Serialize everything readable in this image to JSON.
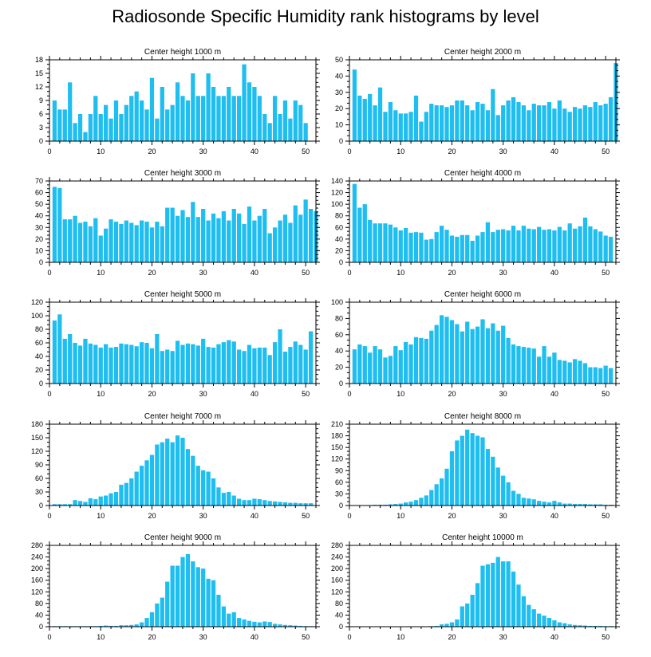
{
  "title": "Radiosonde Specific Humidity rank histograms by level",
  "bar_color": "#1ebef0",
  "chart_data": [
    {
      "type": "bar",
      "title": "Center height 1000 m",
      "xlabel": "",
      "ylabel": "",
      "xlim": [
        0,
        52
      ],
      "ylim": [
        0,
        18
      ],
      "xticks": [
        0,
        10,
        20,
        30,
        40,
        50
      ],
      "yticks": [
        0,
        3,
        6,
        9,
        12,
        15,
        18
      ],
      "values": [
        9,
        7,
        7,
        13,
        4,
        6,
        2,
        6,
        10,
        6,
        8,
        5,
        9,
        6,
        8,
        10,
        11,
        9,
        7,
        14,
        5,
        12,
        7,
        8,
        13,
        10,
        9,
        15,
        10,
        10,
        15,
        12,
        10,
        10,
        12,
        10,
        10,
        17,
        13,
        12,
        10,
        6,
        4,
        10,
        6,
        9,
        5,
        9,
        8,
        4
      ]
    },
    {
      "type": "bar",
      "title": "Center height 2000 m",
      "xlabel": "",
      "ylabel": "",
      "xlim": [
        0,
        52
      ],
      "ylim": [
        0,
        50
      ],
      "xticks": [
        0,
        10,
        20,
        30,
        40,
        50
      ],
      "yticks": [
        0,
        10,
        20,
        30,
        40,
        50
      ],
      "values": [
        44,
        28,
        26,
        29,
        22,
        33,
        18,
        24,
        19,
        17,
        17,
        18,
        28,
        12,
        18,
        23,
        22,
        22,
        21,
        22,
        25,
        25,
        22,
        19,
        24,
        23,
        19,
        32,
        16,
        22,
        25,
        27,
        24,
        22,
        19,
        23,
        22,
        22,
        24,
        20,
        25,
        20,
        18,
        21,
        20,
        22,
        21,
        24,
        22,
        23,
        27,
        48
      ]
    },
    {
      "type": "bar",
      "title": "Center height 3000 m",
      "xlabel": "",
      "ylabel": "",
      "xlim": [
        0,
        52
      ],
      "ylim": [
        0,
        70
      ],
      "xticks": [
        0,
        10,
        20,
        30,
        40,
        50
      ],
      "yticks": [
        0,
        10,
        20,
        30,
        40,
        50,
        60,
        70
      ],
      "values": [
        65,
        64,
        37,
        37,
        40,
        34,
        35,
        31,
        38,
        23,
        29,
        37,
        35,
        33,
        36,
        34,
        32,
        36,
        35,
        30,
        35,
        31,
        47,
        47,
        40,
        45,
        39,
        52,
        39,
        46,
        36,
        42,
        38,
        44,
        36,
        46,
        42,
        33,
        48,
        36,
        40,
        46,
        25,
        30,
        36,
        41,
        34,
        49,
        41,
        54,
        46,
        44
      ]
    },
    {
      "type": "bar",
      "title": "Center height 4000 m",
      "xlabel": "",
      "ylabel": "",
      "xlim": [
        0,
        52
      ],
      "ylim": [
        0,
        140
      ],
      "xticks": [
        0,
        10,
        20,
        30,
        40,
        50
      ],
      "yticks": [
        0,
        20,
        40,
        60,
        80,
        100,
        120,
        140
      ],
      "values": [
        135,
        94,
        100,
        73,
        67,
        67,
        67,
        65,
        60,
        55,
        59,
        51,
        52,
        51,
        39,
        40,
        52,
        63,
        56,
        46,
        44,
        47,
        47,
        37,
        46,
        52,
        69,
        52,
        56,
        57,
        55,
        63,
        55,
        63,
        58,
        57,
        61,
        56,
        57,
        55,
        61,
        55,
        67,
        58,
        62,
        77,
        62,
        57,
        53,
        46,
        44
      ]
    },
    {
      "type": "bar",
      "title": "Center height 5000 m",
      "xlabel": "",
      "ylabel": "",
      "xlim": [
        0,
        52
      ],
      "ylim": [
        0,
        120
      ],
      "xticks": [
        0,
        10,
        20,
        30,
        40,
        50
      ],
      "yticks": [
        0,
        20,
        40,
        60,
        80,
        100,
        120
      ],
      "values": [
        93,
        102,
        66,
        73,
        60,
        56,
        66,
        59,
        57,
        53,
        58,
        53,
        54,
        59,
        58,
        57,
        55,
        61,
        60,
        52,
        73,
        48,
        50,
        48,
        63,
        57,
        59,
        58,
        56,
        66,
        54,
        53,
        58,
        61,
        64,
        62,
        50,
        48,
        57,
        52,
        53,
        53,
        42,
        61,
        80,
        47,
        54,
        62,
        57,
        50,
        77
      ]
    },
    {
      "type": "bar",
      "title": "Center height 6000 m",
      "xlabel": "",
      "ylabel": "",
      "xlim": [
        0,
        52
      ],
      "ylim": [
        0,
        100
      ],
      "xticks": [
        0,
        10,
        20,
        30,
        40,
        50
      ],
      "yticks": [
        0,
        20,
        40,
        60,
        80,
        100
      ],
      "values": [
        42,
        48,
        46,
        38,
        46,
        42,
        32,
        34,
        46,
        41,
        51,
        48,
        57,
        56,
        55,
        65,
        72,
        84,
        82,
        78,
        73,
        64,
        76,
        67,
        70,
        79,
        68,
        74,
        65,
        71,
        56,
        48,
        46,
        45,
        44,
        43,
        33,
        46,
        33,
        38,
        29,
        28,
        26,
        30,
        28,
        25,
        20,
        20,
        19,
        22,
        19
      ]
    },
    {
      "type": "bar",
      "title": "Center height 7000 m",
      "xlabel": "",
      "ylabel": "",
      "xlim": [
        0,
        52
      ],
      "ylim": [
        0,
        180
      ],
      "xticks": [
        0,
        10,
        20,
        30,
        40,
        50
      ],
      "yticks": [
        0,
        30,
        60,
        90,
        120,
        150,
        180
      ],
      "values": [
        3,
        3,
        3,
        3,
        12,
        10,
        8,
        16,
        14,
        20,
        22,
        27,
        30,
        46,
        50,
        60,
        75,
        88,
        100,
        112,
        135,
        140,
        148,
        140,
        155,
        150,
        125,
        110,
        88,
        78,
        75,
        60,
        40,
        28,
        30,
        22,
        15,
        12,
        12,
        15,
        14,
        12,
        10,
        9,
        8,
        7,
        6,
        6,
        5,
        5,
        5
      ]
    },
    {
      "type": "bar",
      "title": "Center height 8000 m",
      "xlabel": "",
      "ylabel": "",
      "xlim": [
        0,
        52
      ],
      "ylim": [
        0,
        210
      ],
      "xticks": [
        0,
        10,
        20,
        30,
        40,
        50
      ],
      "yticks": [
        0,
        30,
        60,
        90,
        120,
        150,
        180,
        210
      ],
      "values": [
        1,
        1,
        1,
        1,
        2,
        2,
        2,
        3,
        4,
        5,
        8,
        10,
        14,
        20,
        26,
        40,
        55,
        70,
        95,
        140,
        168,
        180,
        196,
        187,
        180,
        176,
        146,
        126,
        98,
        77,
        60,
        38,
        30,
        20,
        18,
        16,
        12,
        10,
        8,
        12,
        8,
        5,
        5,
        4,
        4,
        4,
        3,
        3,
        3,
        2,
        2
      ]
    },
    {
      "type": "bar",
      "title": "Center height 9000 m",
      "xlabel": "",
      "ylabel": "",
      "xlim": [
        0,
        52
      ],
      "ylim": [
        0,
        280
      ],
      "xticks": [
        0,
        10,
        20,
        30,
        40,
        50
      ],
      "yticks": [
        0,
        40,
        80,
        120,
        160,
        200,
        240,
        280
      ],
      "values": [
        2,
        2,
        2,
        2,
        2,
        2,
        2,
        2,
        2,
        3,
        4,
        3,
        3,
        5,
        5,
        6,
        8,
        15,
        30,
        50,
        80,
        100,
        155,
        210,
        210,
        240,
        250,
        225,
        205,
        200,
        165,
        160,
        110,
        70,
        45,
        50,
        30,
        25,
        20,
        17,
        15,
        18,
        16,
        10,
        8,
        6,
        5,
        4,
        3,
        2,
        2
      ]
    },
    {
      "type": "bar",
      "title": "Center height 10000 m",
      "xlabel": "",
      "ylabel": "",
      "xlim": [
        0,
        52
      ],
      "ylim": [
        0,
        280
      ],
      "xticks": [
        0,
        10,
        20,
        30,
        40,
        50
      ],
      "yticks": [
        0,
        40,
        80,
        120,
        160,
        200,
        240,
        280
      ],
      "values": [
        1,
        1,
        1,
        1,
        1,
        1,
        1,
        1,
        1,
        1,
        1,
        1,
        1,
        1,
        1,
        2,
        3,
        8,
        10,
        15,
        25,
        70,
        80,
        110,
        150,
        210,
        215,
        220,
        240,
        225,
        225,
        190,
        145,
        105,
        75,
        60,
        45,
        38,
        30,
        22,
        15,
        12,
        8,
        6,
        5,
        4,
        3,
        3,
        3,
        2,
        2
      ]
    }
  ]
}
